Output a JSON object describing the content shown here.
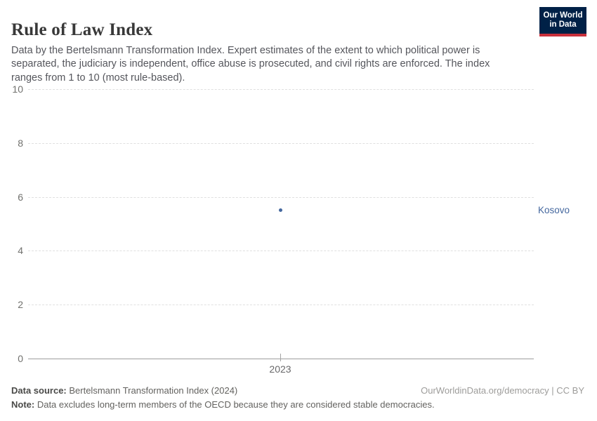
{
  "header": {
    "title": "Rule of Law Index",
    "subtitle": "Data by the Bertelsmann Transformation Index. Expert estimates of the extent to which political power is separated, the judiciary is independent, office abuse is prosecuted, and civil rights are enforced. The index ranges from 1 to 10 (most rule-based).",
    "logo": {
      "line1": "Our World",
      "line2": "in Data",
      "bg_color": "#002147",
      "bar_color": "#c9303c",
      "text_color": "#ffffff"
    }
  },
  "chart_data": {
    "type": "scatter",
    "title": "Rule of Law Index",
    "series": [
      {
        "name": "Kosovo",
        "x": [
          2023
        ],
        "values": [
          5.5
        ],
        "color": "#44679e"
      }
    ],
    "categories": [
      2023
    ],
    "xticks": [
      "2023"
    ],
    "yticks": [
      0,
      2,
      4,
      6,
      8,
      10
    ],
    "ylim": [
      0,
      10
    ],
    "xlabel": "",
    "ylabel": "",
    "grid": true,
    "gridline_color": "#e0e0e0",
    "axis_color": "#9d9d9d",
    "legend_position": "right-of-point"
  },
  "footer": {
    "source_label": "Data source:",
    "source_text": " Bertelsmann Transformation Index (2024)",
    "note_label": "Note:",
    "note_text": " Data excludes long-term members of the OECD because they are considered stable democracies.",
    "link_text": "OurWorldinData.org/democracy | CC BY"
  }
}
